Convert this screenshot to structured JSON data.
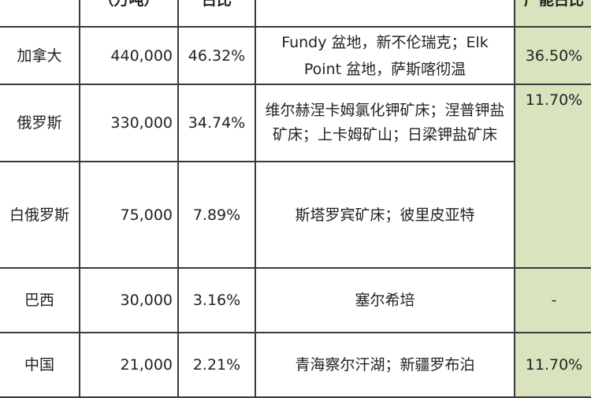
{
  "header": [
    "",
    "（万吨）",
    "占比",
    "",
    "产能占比"
  ],
  "rows": [
    {
      "country": "加拿大",
      "reserve": "440,000",
      "share": "46.32%",
      "deposits": "Fundy 盆地，新不伦瑞克；Elk Point 盆地，萨斯喀彻温",
      "capacity_share": "36.50%"
    },
    {
      "country": "俄罗斯",
      "reserve": "330,000",
      "share": "34.74%",
      "deposits": "维尔赫涅卡姆氯化钾矿床；涅普钾盐矿床；上卡姆矿山；日梁钾盐矿床",
      "capacity_share": "11.70%"
    },
    {
      "country": "白俄罗斯",
      "reserve": "75,000",
      "share": "7.89%",
      "deposits": "斯塔罗宾矿床；彼里皮亚特"
    },
    {
      "country": "巴西",
      "reserve": "30,000",
      "share": "3.16%",
      "deposits": "塞尔希培",
      "capacity_share": "-"
    },
    {
      "country": "中国",
      "reserve": "21,000",
      "share": "2.21%",
      "deposits": "青海察尔汗湖；新疆罗布泊",
      "capacity_share": "11.70%"
    }
  ],
  "colors": {
    "capacity_column_bg": "#d9e4bf",
    "border": "#3a3a3a"
  }
}
